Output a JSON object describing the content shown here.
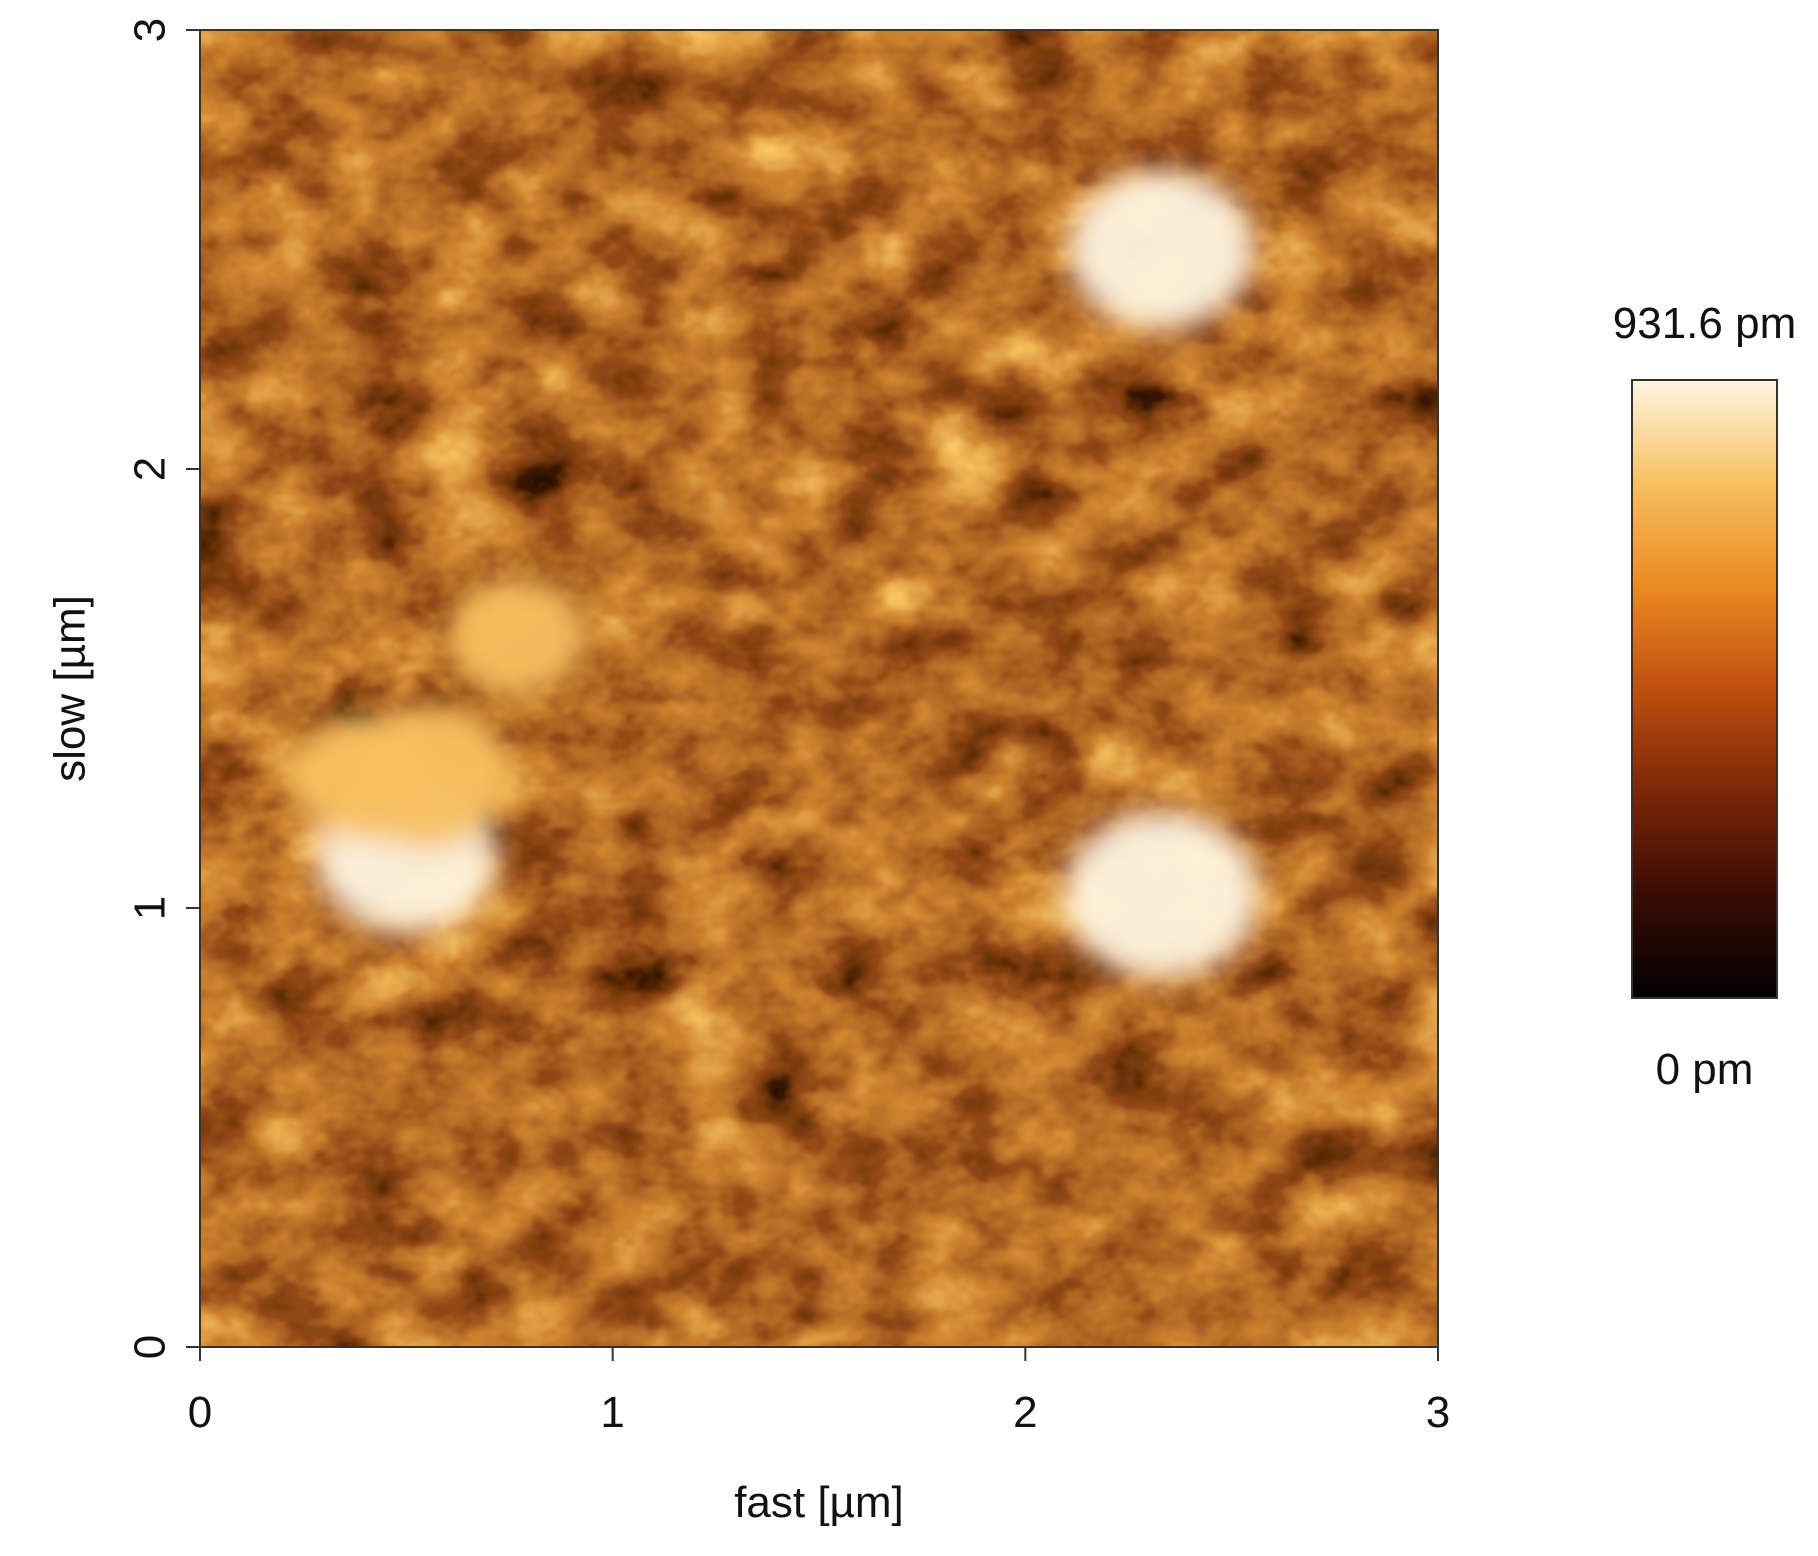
{
  "chart_data": {
    "type": "heatmap",
    "xlabel": "fast [µm]",
    "ylabel": "slow [µm]",
    "xlim": [
      0,
      3
    ],
    "ylim": [
      0,
      3
    ],
    "x_ticks": [
      "0",
      "1",
      "2",
      "3"
    ],
    "y_ticks": [
      "0",
      "1",
      "2",
      "3"
    ],
    "colorbar": {
      "max_label": "931.6 pm",
      "min_label": "0 pm",
      "min": 0,
      "max": 931.6,
      "unit": "pm",
      "colormap": [
        "#000000",
        "#3a0c02",
        "#7a2606",
        "#c0500e",
        "#ec8a22",
        "#f7c060",
        "#fff6e2"
      ]
    },
    "features": [
      {
        "x": 2.33,
        "y": 1.03,
        "z": 931.6
      },
      {
        "x": 0.5,
        "y": 1.12,
        "z": 880
      },
      {
        "x": 0.4,
        "y": 1.3,
        "z": 760
      },
      {
        "x": 0.55,
        "y": 1.3,
        "z": 840
      },
      {
        "x": 2.33,
        "y": 2.5,
        "z": 900
      },
      {
        "x": 0.77,
        "y": 1.62,
        "z": 720
      }
    ]
  }
}
